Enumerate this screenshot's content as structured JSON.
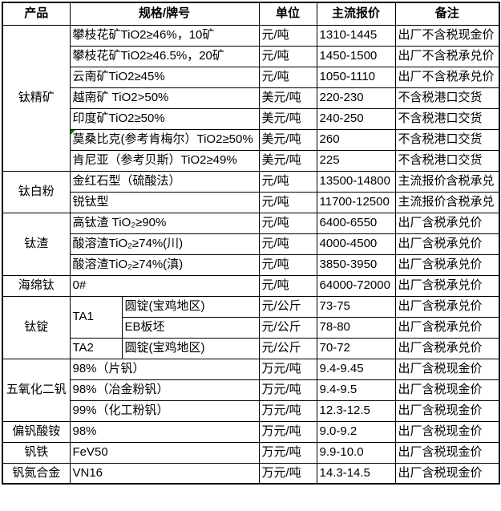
{
  "colors": {
    "background": "#ffffff",
    "text": "#000000",
    "border": "#000000",
    "comment_marker": "#008000"
  },
  "table": {
    "header": {
      "product": "产品",
      "spec": "规格/牌号",
      "unit": "单位",
      "price": "主流报价",
      "note": "备注"
    },
    "groups": [
      {
        "product": "钛精矿",
        "rows": [
          {
            "spec": "攀枝花矿TiO2≥46%，10矿",
            "unit": "元/吨",
            "price": "1310-1445",
            "note": "出厂不含税现金价"
          },
          {
            "spec": "攀枝花矿TiO2≥46.5%，20矿",
            "unit": "元/吨",
            "price": "1450-1500",
            "note": "出厂不含税承兑价"
          },
          {
            "spec": "云南矿TiO2≥45%",
            "unit": "元/吨",
            "price": "1050-1110",
            "note": "出厂不含税承兑价"
          },
          {
            "spec": "越南矿 TiO2>50%",
            "unit": "美元/吨",
            "price": "220-230",
            "note": "不含税港口交货"
          },
          {
            "spec": "印度矿TiO2≥50%",
            "unit": "美元/吨",
            "price": "240-250",
            "note": "不含税港口交货"
          },
          {
            "spec": "莫桑比克(参考肯梅尔）TiO2≥50%",
            "unit": "美元/吨",
            "price": "260",
            "note": "不含税港口交货",
            "comment_marker": true
          },
          {
            "spec": "肯尼亚（参考贝斯）TiO2≥49%",
            "unit": "美元/吨",
            "price": "225",
            "note": "不含税港口交货"
          }
        ]
      },
      {
        "product": "钛白粉",
        "rows": [
          {
            "spec": "金红石型（硫酸法）",
            "unit": "元/吨",
            "price": "13500-14800",
            "note": "主流报价含税承兑"
          },
          {
            "spec": "锐钛型",
            "unit": "元/吨",
            "price": "11700-12500",
            "note": "主流报价含税承兑"
          }
        ]
      },
      {
        "product": "钛渣",
        "rows": [
          {
            "spec": "高钛渣 TiO₂≥90%",
            "unit": "元/吨",
            "price": "6400-6550",
            "note": "出厂含税承兑价"
          },
          {
            "spec": "酸溶渣TiO₂≥74%(川)",
            "unit": "元/吨",
            "price": "4000-4500",
            "note": "出厂含税承兑价"
          },
          {
            "spec": "酸溶渣TiO₂≥74%(滇)",
            "unit": "元/吨",
            "price": "3850-3950",
            "note": "出厂含税承兑价"
          }
        ]
      },
      {
        "product": "海绵钛",
        "rows": [
          {
            "spec": "0#",
            "unit": "元/吨",
            "price": "64000-72000",
            "note": "出厂含税承兑价"
          }
        ]
      },
      {
        "product": "钛锭",
        "rows": [
          {
            "spec_a": "TA1",
            "spec_a_rowspan": 2,
            "spec_b": "圆锭(宝鸡地区)",
            "unit": "元/公斤",
            "price": "73-75",
            "note": "出厂含税承兑价"
          },
          {
            "spec_b": "EB板坯",
            "unit": "元/公斤",
            "price": "78-80",
            "note": "出厂含税承兑价"
          },
          {
            "spec_a": "TA2",
            "spec_a_rowspan": 1,
            "spec_b": "圆锭(宝鸡地区)",
            "unit": "元/公斤",
            "price": "70-72",
            "note": "出厂含税承兑价"
          }
        ]
      },
      {
        "product": "五氧化二钒",
        "rows": [
          {
            "spec": "98%（片钒）",
            "unit": "万元/吨",
            "price": "9.4-9.45",
            "note": "出厂含税现金价"
          },
          {
            "spec": "98%（冶金粉钒）",
            "unit": "万元/吨",
            "price": "9.4-9.5",
            "note": "出厂含税现金价"
          },
          {
            "spec": "99%（化工粉钒）",
            "unit": "万元/吨",
            "price": "12.3-12.5",
            "note": "出厂含税现金价"
          }
        ]
      },
      {
        "product": "偏钒酸铵",
        "rows": [
          {
            "spec": "98%",
            "unit": "万元/吨",
            "price": "9.0-9.2",
            "note": "出厂含税现金价"
          }
        ]
      },
      {
        "product": "钒铁",
        "rows": [
          {
            "spec": "FeV50",
            "unit": "万元/吨",
            "price": "9.9-10.0",
            "note": "出厂含税现金价"
          }
        ]
      },
      {
        "product": "钒氮合金",
        "rows": [
          {
            "spec": "VN16",
            "unit": "万元/吨",
            "price": "14.3-14.5",
            "note": "出厂含税现金价"
          }
        ]
      }
    ]
  }
}
